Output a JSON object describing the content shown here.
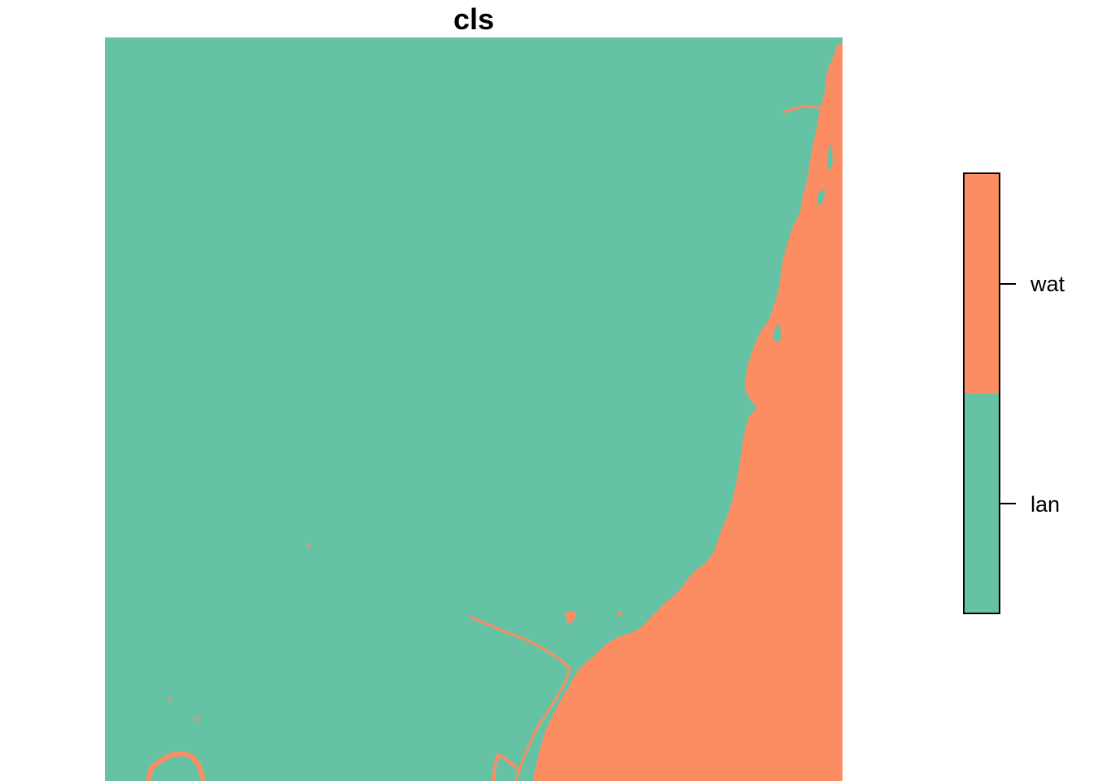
{
  "title": "cls",
  "classes": [
    {
      "label": "lan",
      "color": "#66C2A5"
    },
    {
      "label": "wat",
      "color": "#FC8D62"
    }
  ],
  "legend": {
    "placement": "right",
    "items": [
      "wat",
      "lan"
    ]
  }
}
